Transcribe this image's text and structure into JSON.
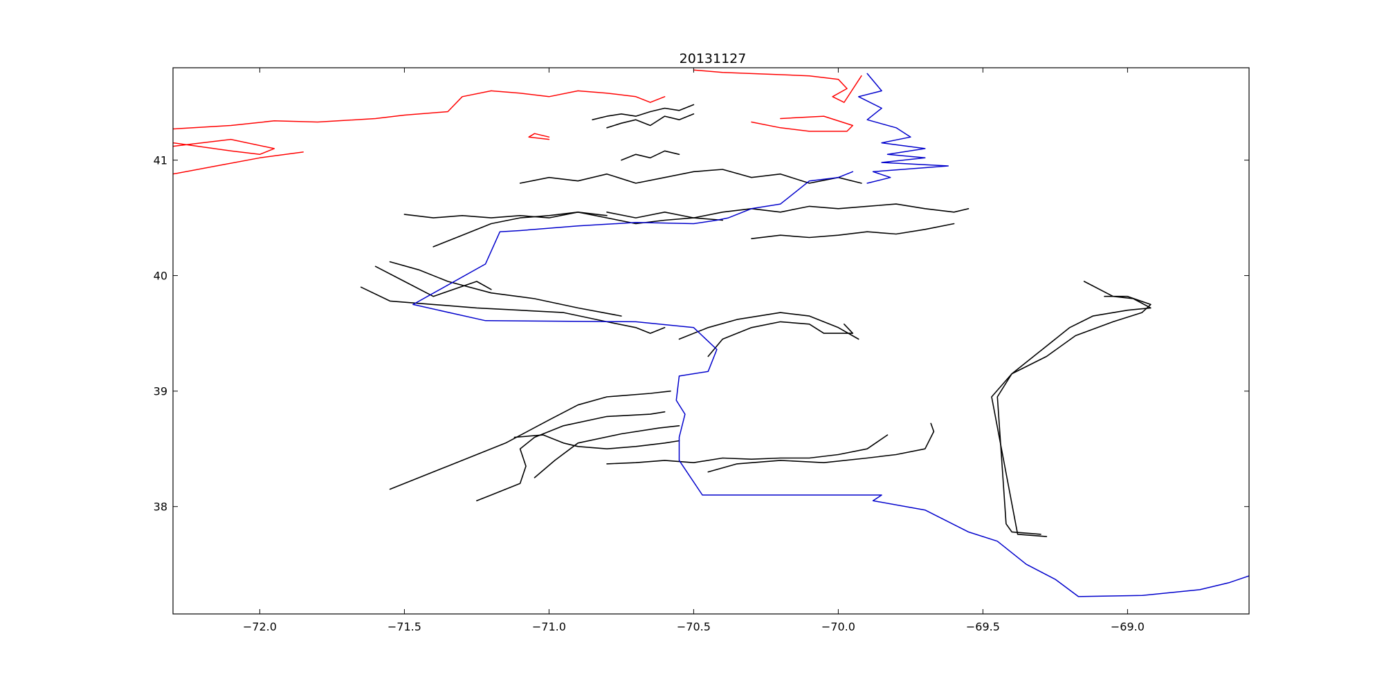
{
  "chart_data": {
    "type": "line",
    "title": "20131127",
    "xlabel": "",
    "ylabel": "",
    "xlim": [
      -72.3,
      -68.58
    ],
    "ylim": [
      37.07,
      41.8
    ],
    "xticks": [
      -72.0,
      -71.5,
      -71.0,
      -70.5,
      -70.0,
      -69.5,
      -69.0
    ],
    "xtick_labels": [
      "−72.0",
      "−71.5",
      "−71.0",
      "−70.5",
      "−70.0",
      "−69.5",
      "−69.0"
    ],
    "yticks": [
      38,
      39,
      40,
      41
    ],
    "ytick_labels": [
      "38",
      "39",
      "40",
      "41"
    ],
    "grid": false,
    "colors": {
      "coastline": "#ff0000",
      "route": "#0000cc",
      "drifter": "#000000"
    },
    "coastline": [
      {
        "x": [
          -72.3,
          -72.1,
          -71.95,
          -71.8,
          -71.6,
          -71.5,
          -71.35,
          -71.3,
          -71.2
        ],
        "y": [
          41.27,
          41.3,
          41.34,
          41.33,
          41.36,
          41.39,
          41.42,
          41.55,
          41.6
        ]
      },
      {
        "x": [
          -71.2,
          -71.1,
          -71.0,
          -70.9,
          -70.8,
          -70.7,
          -70.65,
          -70.6
        ],
        "y": [
          41.6,
          41.58,
          41.55,
          41.6,
          41.58,
          41.55,
          41.5,
          41.55
        ]
      },
      {
        "x": [
          -72.3,
          -72.15,
          -72.0,
          -71.85
        ],
        "y": [
          40.88,
          40.95,
          41.02,
          41.07
        ]
      },
      {
        "x": [
          -72.3,
          -72.1,
          -71.95,
          -72.0,
          -72.1,
          -72.3
        ],
        "y": [
          41.12,
          41.18,
          41.1,
          41.05,
          41.08,
          41.15
        ]
      },
      {
        "x": [
          -70.5,
          -70.4,
          -70.2,
          -70.1,
          -70.0,
          -69.97,
          -70.02,
          -69.98,
          -69.92
        ],
        "y": [
          41.78,
          41.76,
          41.74,
          41.73,
          41.7,
          41.62,
          41.55,
          41.5,
          41.73
        ]
      },
      {
        "x": [
          -70.3,
          -70.2,
          -70.1,
          -69.97,
          -69.95,
          -70.05,
          -70.2
        ],
        "y": [
          41.33,
          41.28,
          41.25,
          41.25,
          41.3,
          41.38,
          41.36
        ]
      },
      {
        "x": [
          -71.0,
          -71.07,
          -71.05,
          -71.0
        ],
        "y": [
          41.18,
          41.2,
          41.23,
          41.2
        ]
      }
    ],
    "route": [
      {
        "x": [
          -71.47,
          -71.22,
          -71.17,
          -71.1,
          -70.9,
          -70.7,
          -70.5,
          -70.42,
          -70.38,
          -70.3,
          -70.2,
          -70.15,
          -70.1,
          -70.0,
          -69.95
        ],
        "y": [
          39.75,
          40.1,
          40.38,
          40.39,
          40.43,
          40.46,
          40.45,
          40.48,
          40.5,
          40.58,
          40.62,
          40.72,
          40.82,
          40.85,
          40.9
        ]
      },
      {
        "x": [
          -71.47,
          -71.22,
          -70.7,
          -70.5,
          -70.42,
          -70.45,
          -70.55,
          -70.56,
          -70.53,
          -70.55,
          -70.55,
          -70.47,
          -69.85,
          -69.88,
          -69.7,
          -69.55,
          -69.45,
          -69.35,
          -69.25,
          -69.17,
          -68.95,
          -68.75,
          -68.65,
          -68.58
        ],
        "y": [
          39.75,
          39.61,
          39.6,
          39.55,
          39.36,
          39.17,
          39.13,
          38.92,
          38.8,
          38.6,
          38.4,
          38.1,
          38.1,
          38.05,
          37.97,
          37.78,
          37.7,
          37.5,
          37.37,
          37.22,
          37.23,
          37.28,
          37.34,
          37.4
        ]
      },
      {
        "x": [
          -69.9,
          -69.85,
          -69.93,
          -69.85,
          -69.9,
          -69.8,
          -69.75,
          -69.85,
          -69.7,
          -69.83,
          -69.7,
          -69.85,
          -69.62,
          -69.88,
          -69.82,
          -69.9
        ],
        "y": [
          41.75,
          41.6,
          41.55,
          41.45,
          41.35,
          41.28,
          41.2,
          41.15,
          41.1,
          41.05,
          41.02,
          40.98,
          40.95,
          40.9,
          40.85,
          40.8
        ]
      }
    ],
    "drifters": [
      {
        "x": [
          -71.55,
          -71.35,
          -71.15,
          -71.0,
          -70.9,
          -70.8,
          -70.65,
          -70.58
        ],
        "y": [
          38.15,
          38.35,
          38.55,
          38.75,
          38.88,
          38.95,
          38.98,
          39.0
        ]
      },
      {
        "x": [
          -71.25,
          -71.2,
          -71.15,
          -71.1,
          -71.08,
          -71.1,
          -71.05,
          -70.95,
          -70.8,
          -70.65,
          -70.6
        ],
        "y": [
          38.05,
          38.1,
          38.15,
          38.2,
          38.35,
          38.5,
          38.6,
          38.7,
          38.78,
          38.8,
          38.82
        ]
      },
      {
        "x": [
          -71.05,
          -70.98,
          -70.9,
          -70.75,
          -70.62,
          -70.55
        ],
        "y": [
          38.25,
          38.4,
          38.55,
          38.63,
          38.68,
          38.7
        ]
      },
      {
        "x": [
          -71.12,
          -71.02,
          -70.95,
          -70.9,
          -70.8,
          -70.7,
          -70.6,
          -70.55
        ],
        "y": [
          38.6,
          38.62,
          38.55,
          38.52,
          38.5,
          38.52,
          38.55,
          38.57
        ]
      },
      {
        "x": [
          -70.8,
          -70.7,
          -70.6,
          -70.5,
          -70.4,
          -70.3,
          -70.2,
          -70.1,
          -70.0,
          -69.9,
          -69.83
        ],
        "y": [
          38.37,
          38.38,
          38.4,
          38.38,
          38.42,
          38.41,
          38.42,
          38.42,
          38.45,
          38.5,
          38.62
        ]
      },
      {
        "x": [
          -70.45,
          -70.35,
          -70.2,
          -70.05,
          -69.9,
          -69.8,
          -69.7,
          -69.67,
          -69.68
        ],
        "y": [
          38.3,
          38.37,
          38.4,
          38.38,
          38.42,
          38.45,
          38.5,
          38.65,
          38.72
        ]
      },
      {
        "x": [
          -69.3,
          -69.4,
          -69.42,
          -69.45,
          -69.4,
          -69.3,
          -69.2,
          -69.12,
          -69.0,
          -68.92,
          -68.98,
          -69.05,
          -69.15
        ],
        "y": [
          37.76,
          37.78,
          37.85,
          38.95,
          39.15,
          39.35,
          39.55,
          39.65,
          39.7,
          39.72,
          39.8,
          39.82,
          39.95
        ]
      },
      {
        "x": [
          -69.28,
          -69.38,
          -69.47,
          -69.4,
          -69.28,
          -69.18,
          -69.05,
          -68.95,
          -68.92,
          -69.0,
          -69.08
        ],
        "y": [
          37.74,
          37.76,
          38.95,
          39.15,
          39.3,
          39.48,
          39.6,
          39.68,
          39.75,
          39.82,
          39.82
        ]
      },
      {
        "x": [
          -71.65,
          -71.55,
          -71.4,
          -71.25,
          -71.1,
          -70.95,
          -70.8,
          -70.7,
          -70.65,
          -70.6
        ],
        "y": [
          39.9,
          39.78,
          39.75,
          39.72,
          39.7,
          39.68,
          39.6,
          39.55,
          39.5,
          39.55
        ]
      },
      {
        "x": [
          -71.55,
          -71.45,
          -71.35,
          -71.2,
          -71.05,
          -70.9,
          -70.75
        ],
        "y": [
          40.12,
          40.05,
          39.95,
          39.85,
          39.8,
          39.72,
          39.65
        ]
      },
      {
        "x": [
          -71.6,
          -71.5,
          -71.4,
          -71.25,
          -71.2
        ],
        "y": [
          40.08,
          39.95,
          39.82,
          39.95,
          39.88
        ]
      },
      {
        "x": [
          -70.55,
          -70.45,
          -70.35,
          -70.2,
          -70.1,
          -70.0,
          -69.93
        ],
        "y": [
          39.45,
          39.55,
          39.62,
          39.68,
          39.65,
          39.55,
          39.45
        ]
      },
      {
        "x": [
          -70.45,
          -70.4,
          -70.3,
          -70.2,
          -70.1,
          -70.05,
          -69.95,
          -69.98
        ],
        "y": [
          39.3,
          39.45,
          39.55,
          39.6,
          39.58,
          39.5,
          39.5,
          39.58
        ]
      },
      {
        "x": [
          -71.4,
          -71.3,
          -71.2,
          -71.1,
          -71.0,
          -70.9,
          -70.8,
          -70.7,
          -70.6,
          -70.5,
          -70.4
        ],
        "y": [
          40.25,
          40.35,
          40.45,
          40.5,
          40.52,
          40.55,
          40.5,
          40.45,
          40.48,
          40.5,
          40.48
        ]
      },
      {
        "x": [
          -71.5,
          -71.4,
          -71.3,
          -71.2,
          -71.1,
          -71.0,
          -70.9,
          -70.8
        ],
        "y": [
          40.53,
          40.5,
          40.52,
          40.5,
          40.52,
          40.5,
          40.55,
          40.52
        ]
      },
      {
        "x": [
          -70.8,
          -70.7,
          -70.6,
          -70.5,
          -70.4,
          -70.3,
          -70.2,
          -70.1,
          -70.0,
          -69.9,
          -69.8,
          -69.7,
          -69.6,
          -69.55
        ],
        "y": [
          40.55,
          40.5,
          40.55,
          40.5,
          40.55,
          40.58,
          40.55,
          40.6,
          40.58,
          40.6,
          40.62,
          40.58,
          40.55,
          40.58
        ]
      },
      {
        "x": [
          -70.3,
          -70.2,
          -70.1,
          -70.0,
          -69.9,
          -69.8,
          -69.7,
          -69.6
        ],
        "y": [
          40.32,
          40.35,
          40.33,
          40.35,
          40.38,
          40.36,
          40.4,
          40.45
        ]
      },
      {
        "x": [
          -71.1,
          -71.0,
          -70.9,
          -70.8,
          -70.7,
          -70.6,
          -70.5,
          -70.4,
          -70.3,
          -70.2,
          -70.1,
          -70.0,
          -69.92
        ],
        "y": [
          40.8,
          40.85,
          40.82,
          40.88,
          40.8,
          40.85,
          40.9,
          40.92,
          40.85,
          40.88,
          40.8,
          40.85,
          40.8
        ]
      },
      {
        "x": [
          -70.85,
          -70.8,
          -70.75,
          -70.7,
          -70.65,
          -70.6,
          -70.55,
          -70.5
        ],
        "y": [
          41.35,
          41.38,
          41.4,
          41.38,
          41.42,
          41.45,
          41.43,
          41.48
        ]
      },
      {
        "x": [
          -70.8,
          -70.75,
          -70.7,
          -70.65,
          -70.6,
          -70.55,
          -70.5
        ],
        "y": [
          41.28,
          41.32,
          41.35,
          41.3,
          41.38,
          41.35,
          41.4
        ]
      },
      {
        "x": [
          -70.75,
          -70.7,
          -70.65,
          -70.6,
          -70.55
        ],
        "y": [
          41.0,
          41.05,
          41.02,
          41.08,
          41.05
        ]
      }
    ]
  }
}
